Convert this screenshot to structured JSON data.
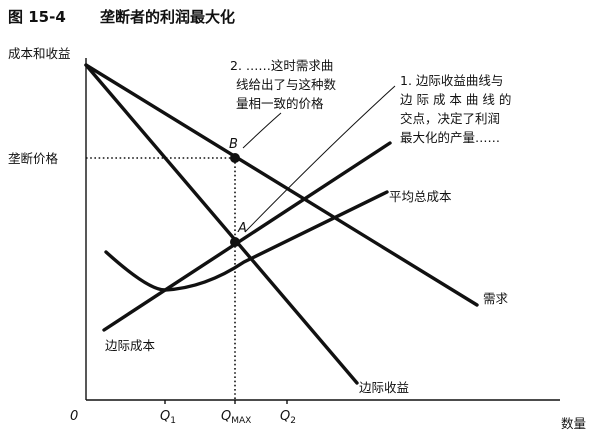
{
  "figure": {
    "number": "图 15-4",
    "title": "垄断者的利润最大化"
  },
  "axes": {
    "y_label": "成本和收益",
    "x_label": "数量",
    "origin": "0",
    "price_label": "垄断价格"
  },
  "x_ticks": {
    "q1": "Q",
    "q1_sub": "1",
    "qmax": "Q",
    "qmax_sub": "MAX",
    "q2": "Q",
    "q2_sub": "2"
  },
  "curves": {
    "demand": "需求",
    "marginal_revenue": "边际收益",
    "marginal_cost": "边际成本",
    "average_total_cost": "平均总成本"
  },
  "points": {
    "a": "A",
    "b": "B"
  },
  "annotations": {
    "note1": [
      "1. 边际收益曲线与",
      "边 际 成 本 曲 线 的",
      "交点，决定了利润",
      "最大化的产量……"
    ],
    "note2": [
      "2. ……这时需求曲",
      "线给出了与这种数",
      "量相一致的价格"
    ]
  },
  "colors": {
    "ink": "#111111",
    "background": "#ffffff"
  }
}
